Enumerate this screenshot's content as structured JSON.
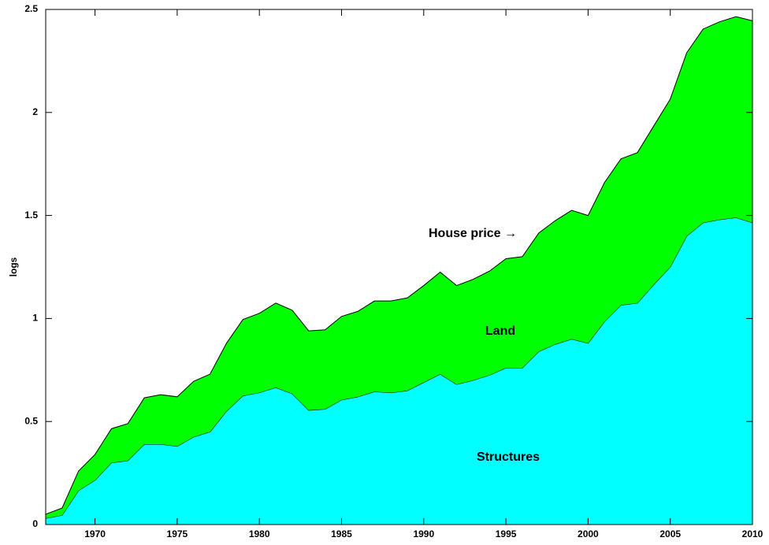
{
  "chart_data": {
    "type": "stacked_area",
    "ylabel": "logs",
    "x": [
      1967,
      1968,
      1969,
      1970,
      1971,
      1972,
      1973,
      1974,
      1975,
      1976,
      1977,
      1978,
      1979,
      1980,
      1981,
      1982,
      1983,
      1984,
      1985,
      1986,
      1987,
      1988,
      1989,
      1990,
      1991,
      1992,
      1993,
      1994,
      1995,
      1996,
      1997,
      1998,
      1999,
      2000,
      2001,
      2002,
      2003,
      2004,
      2005,
      2006,
      2007,
      2008,
      2009,
      2010
    ],
    "series": [
      {
        "name": "Structures",
        "color": "#00ffff",
        "values": [
          0.03,
          0.045,
          0.165,
          0.215,
          0.3,
          0.31,
          0.39,
          0.39,
          0.38,
          0.425,
          0.45,
          0.55,
          0.625,
          0.64,
          0.665,
          0.635,
          0.555,
          0.56,
          0.605,
          0.62,
          0.645,
          0.64,
          0.65,
          0.69,
          0.73,
          0.68,
          0.7,
          0.725,
          0.76,
          0.76,
          0.84,
          0.875,
          0.9,
          0.88,
          0.985,
          1.065,
          1.075,
          1.165,
          1.25,
          1.4,
          1.465,
          1.48,
          1.49,
          1.465
        ]
      },
      {
        "name": "Land",
        "color": "#00ff00",
        "values": [
          0.02,
          0.035,
          0.095,
          0.125,
          0.165,
          0.18,
          0.225,
          0.24,
          0.24,
          0.27,
          0.28,
          0.33,
          0.37,
          0.385,
          0.41,
          0.405,
          0.385,
          0.385,
          0.405,
          0.415,
          0.44,
          0.445,
          0.45,
          0.47,
          0.495,
          0.48,
          0.49,
          0.505,
          0.53,
          0.54,
          0.575,
          0.6,
          0.625,
          0.62,
          0.675,
          0.71,
          0.73,
          0.77,
          0.815,
          0.89,
          0.94,
          0.96,
          0.975,
          0.98
        ]
      }
    ],
    "annotations": [
      {
        "text": "House price →"
      }
    ],
    "xlim": [
      1967,
      2010
    ],
    "xticks": [
      1970,
      1975,
      1980,
      1985,
      1990,
      1995,
      2000,
      2005,
      2010
    ],
    "ylim": [
      0,
      2.5
    ],
    "yticks": [
      0,
      0.5,
      1,
      1.5,
      2,
      2.5
    ]
  }
}
